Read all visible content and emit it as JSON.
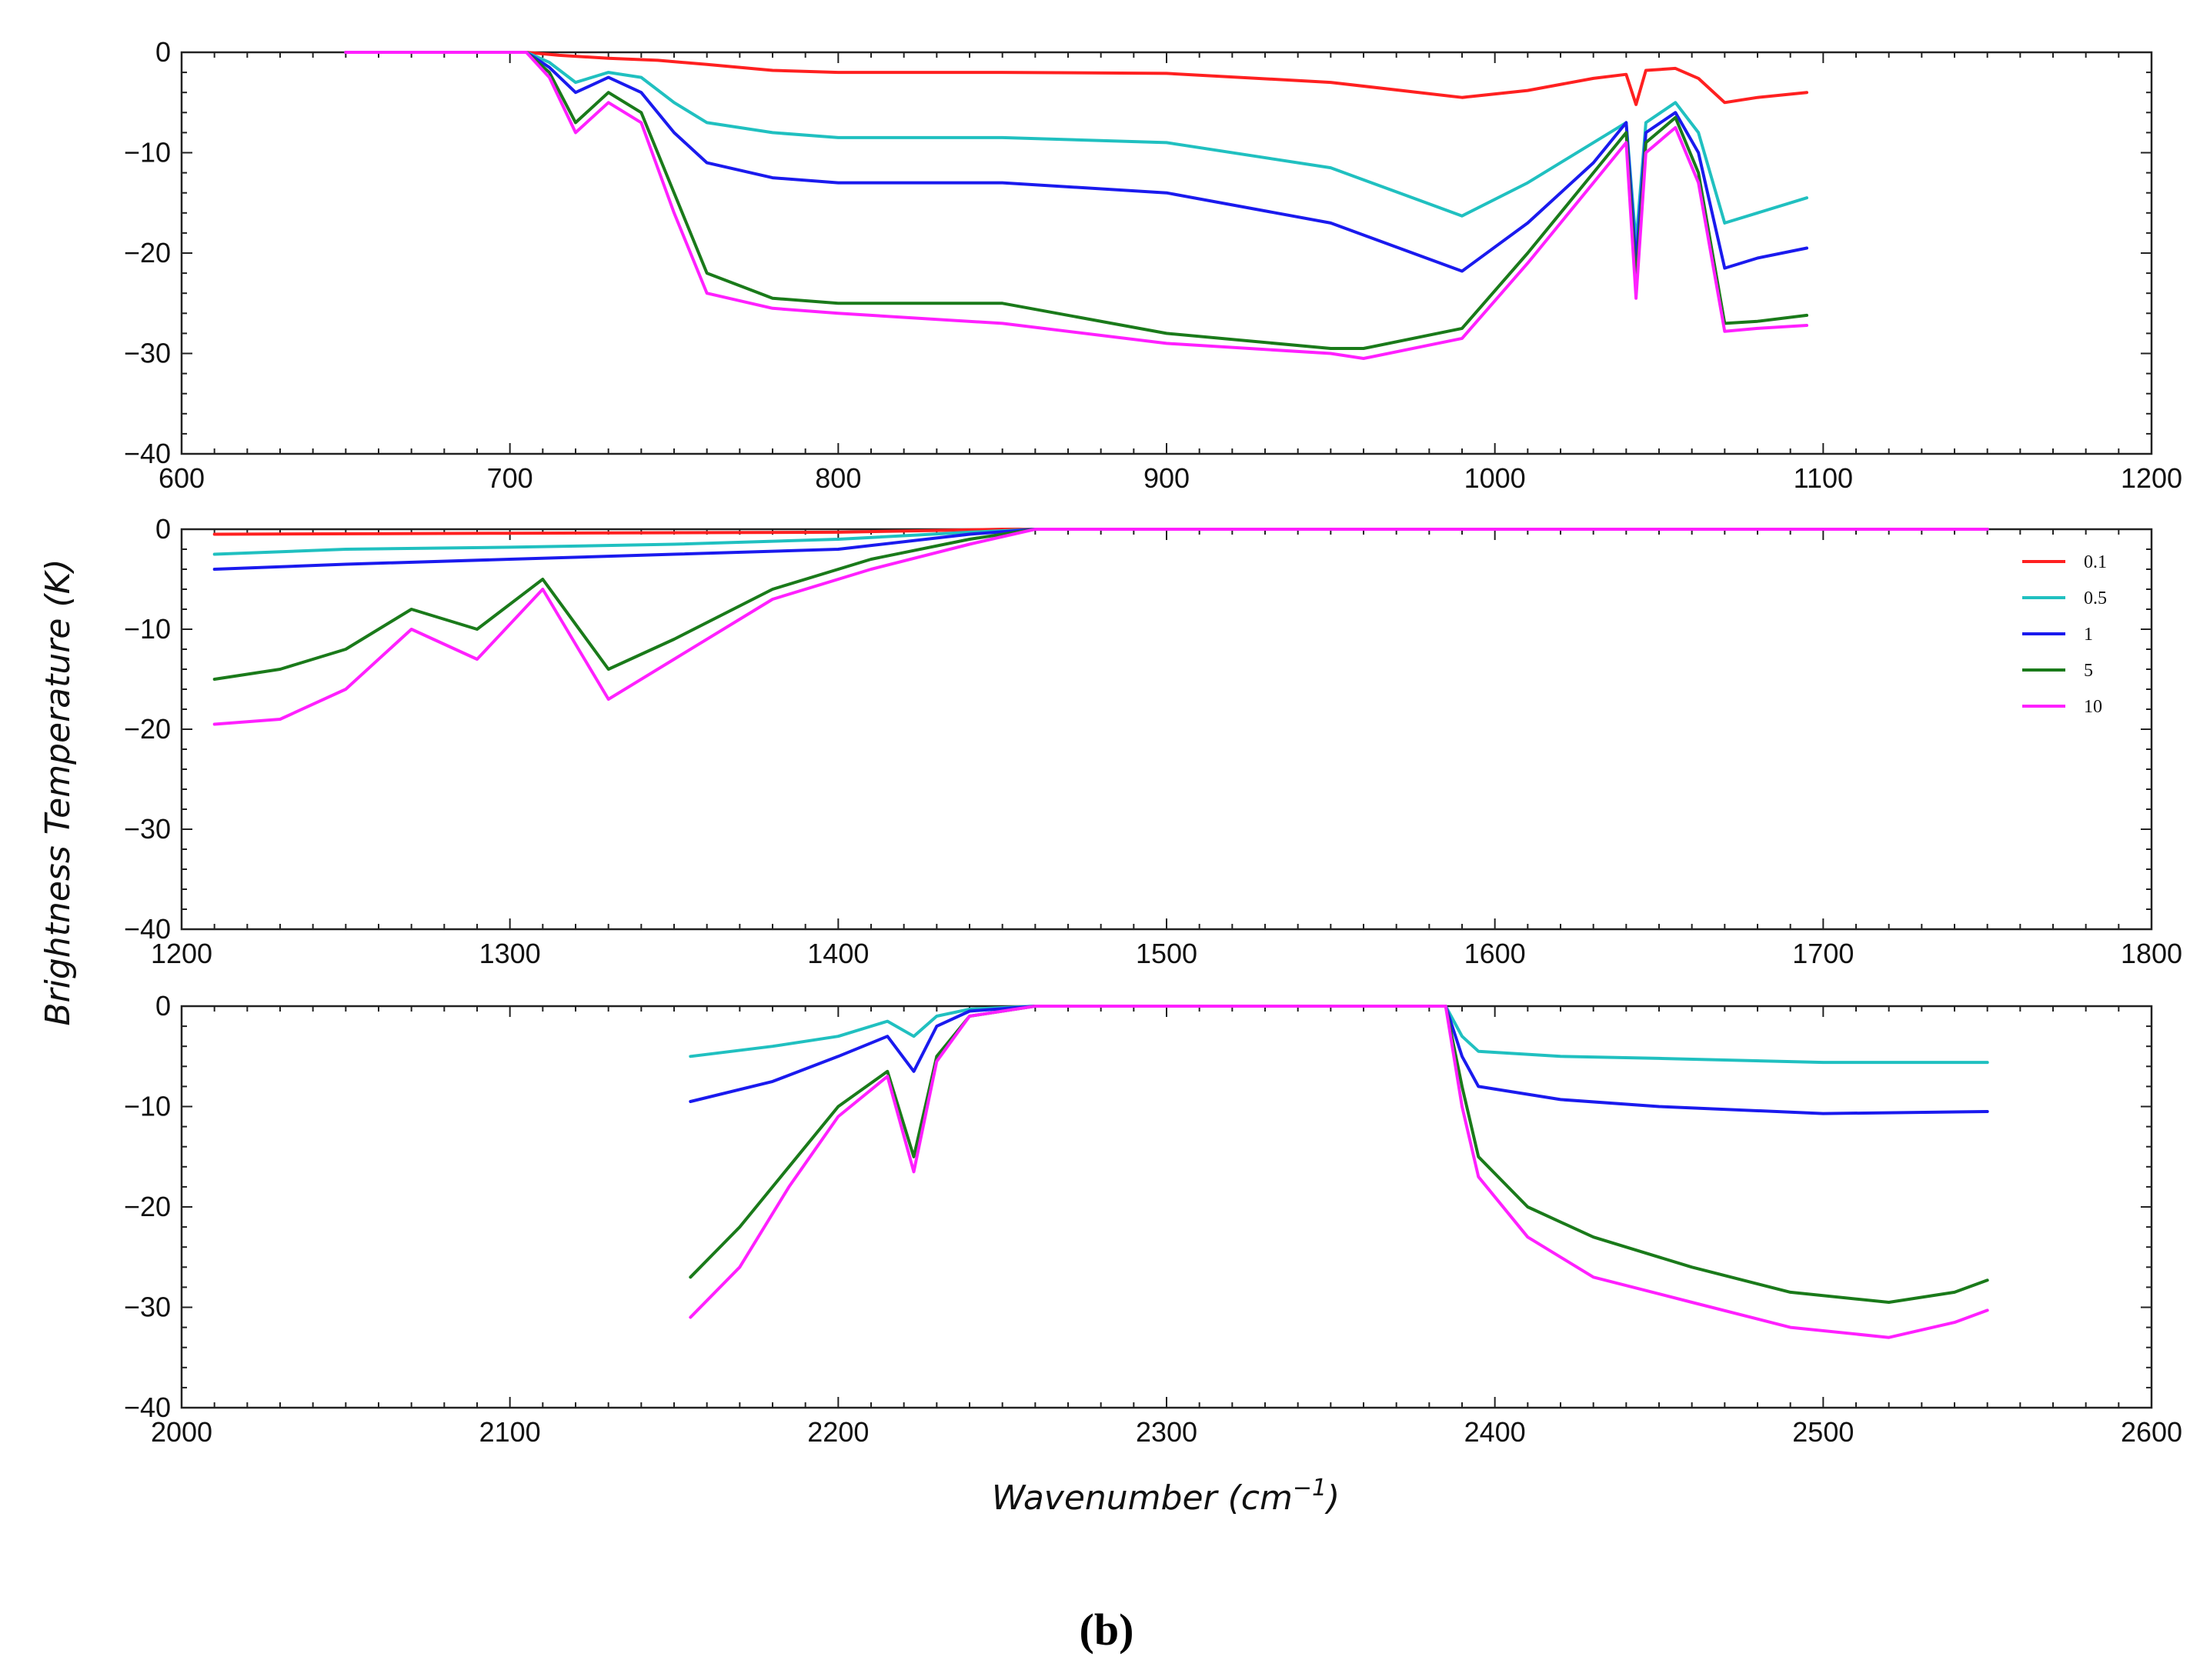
{
  "figure": {
    "caption": "(b)",
    "ylabel": "Brightness Temperature (K)",
    "xlabel_main": "Wavenumber (cm",
    "xlabel_sup": "−1",
    "xlabel_close": ")"
  },
  "legend": [
    {
      "name": "0.1",
      "color": "#ff2020"
    },
    {
      "name": "0.5",
      "color": "#20c0c0"
    },
    {
      "name": "1",
      "color": "#1a1aee"
    },
    {
      "name": "5",
      "color": "#1a7a1a"
    },
    {
      "name": "10",
      "color": "#ff20ff"
    }
  ],
  "chart_data": [
    {
      "type": "line",
      "title": "",
      "xlabel": "",
      "ylabel": "Brightness Temperature (K)",
      "xlim": [
        600,
        1200
      ],
      "ylim": [
        -40,
        0
      ],
      "xticks": [
        "600",
        "700",
        "800",
        "900",
        "1000",
        "1100",
        "1200"
      ],
      "yticks": [
        "0",
        "−10",
        "−20",
        "−30",
        "−40"
      ],
      "series": [
        {
          "name": "0.1",
          "x": [
            650,
            705,
            715,
            730,
            745,
            760,
            780,
            800,
            850,
            900,
            950,
            990,
            1010,
            1030,
            1040,
            1043,
            1046,
            1055,
            1062,
            1070,
            1080,
            1095
          ],
          "y": [
            0,
            0,
            -0.3,
            -0.6,
            -0.8,
            -1.2,
            -1.8,
            -2,
            -2,
            -2.1,
            -3,
            -4.5,
            -3.8,
            -2.6,
            -2.2,
            -5.2,
            -1.8,
            -1.6,
            -2.6,
            -5,
            -4.5,
            -4
          ]
        },
        {
          "name": "0.5",
          "x": [
            650,
            705,
            712,
            720,
            730,
            740,
            750,
            760,
            780,
            800,
            850,
            900,
            950,
            990,
            1010,
            1030,
            1040,
            1043,
            1046,
            1055,
            1062,
            1070,
            1080,
            1095
          ],
          "y": [
            0,
            0,
            -1,
            -3,
            -2,
            -2.5,
            -5,
            -7,
            -8,
            -8.5,
            -8.5,
            -9,
            -11.5,
            -16.3,
            -13,
            -9,
            -7,
            -19,
            -7,
            -5,
            -8,
            -17,
            -16,
            -14.5
          ]
        },
        {
          "name": "1",
          "x": [
            650,
            705,
            712,
            720,
            730,
            740,
            750,
            760,
            780,
            800,
            850,
            900,
            950,
            990,
            1010,
            1030,
            1040,
            1043,
            1046,
            1055,
            1062,
            1070,
            1080,
            1095
          ],
          "y": [
            0,
            0,
            -1.5,
            -4,
            -2.5,
            -4,
            -8,
            -11,
            -12.5,
            -13,
            -13,
            -14,
            -17,
            -21.8,
            -17,
            -11,
            -7,
            -21,
            -8,
            -6,
            -10,
            -21.5,
            -20.5,
            -19.5
          ]
        },
        {
          "name": "5",
          "x": [
            650,
            705,
            712,
            720,
            730,
            740,
            750,
            760,
            780,
            800,
            850,
            900,
            950,
            960,
            990,
            1010,
            1030,
            1040,
            1043,
            1046,
            1055,
            1062,
            1070,
            1080,
            1095
          ],
          "y": [
            0,
            0,
            -2,
            -7,
            -4,
            -6,
            -14,
            -22,
            -24.5,
            -25,
            -25,
            -28,
            -29.5,
            -29.5,
            -27.5,
            -20,
            -12,
            -8,
            -23,
            -9,
            -6.5,
            -12,
            -27,
            -26.8,
            -26.2
          ]
        },
        {
          "name": "10",
          "x": [
            650,
            705,
            712,
            720,
            730,
            740,
            750,
            760,
            780,
            800,
            850,
            900,
            950,
            960,
            990,
            1010,
            1030,
            1040,
            1043,
            1046,
            1055,
            1062,
            1070,
            1080,
            1095
          ],
          "y": [
            0,
            0,
            -2.5,
            -8,
            -5,
            -7,
            -16,
            -24,
            -25.5,
            -26,
            -27,
            -29,
            -30,
            -30.5,
            -28.5,
            -21,
            -13,
            -9,
            -24.5,
            -10,
            -7.5,
            -13,
            -27.8,
            -27.5,
            -27.2
          ]
        }
      ]
    },
    {
      "type": "line",
      "title": "",
      "xlabel": "",
      "ylabel": "",
      "xlim": [
        1200,
        1800
      ],
      "ylim": [
        -40,
        0
      ],
      "xticks": [
        "1200",
        "1300",
        "1400",
        "1500",
        "1600",
        "1700",
        "1800"
      ],
      "yticks": [
        "0",
        "−10",
        "−20",
        "−30",
        "−40"
      ],
      "series": [
        {
          "name": "0.1",
          "x": [
            1210,
            1300,
            1400,
            1450,
            1750
          ],
          "y": [
            -0.5,
            -0.4,
            -0.3,
            0,
            0
          ]
        },
        {
          "name": "0.5",
          "x": [
            1210,
            1250,
            1300,
            1350,
            1400,
            1440,
            1460,
            1750
          ],
          "y": [
            -2.5,
            -2,
            -1.8,
            -1.5,
            -1,
            -0.3,
            0,
            0
          ]
        },
        {
          "name": "1",
          "x": [
            1210,
            1250,
            1300,
            1350,
            1400,
            1440,
            1460,
            1750
          ],
          "y": [
            -4,
            -3.5,
            -3,
            -2.5,
            -2,
            -0.5,
            0,
            0
          ]
        },
        {
          "name": "5",
          "x": [
            1210,
            1230,
            1250,
            1270,
            1290,
            1310,
            1330,
            1350,
            1380,
            1410,
            1440,
            1460,
            1750
          ],
          "y": [
            -15,
            -14,
            -12,
            -8,
            -10,
            -5,
            -14,
            -11,
            -6,
            -3,
            -1,
            0,
            0
          ]
        },
        {
          "name": "10",
          "x": [
            1210,
            1230,
            1250,
            1270,
            1290,
            1310,
            1330,
            1350,
            1380,
            1410,
            1440,
            1460,
            1750
          ],
          "y": [
            -19.5,
            -19,
            -16,
            -10,
            -13,
            -6,
            -17,
            -13,
            -7,
            -4,
            -1.5,
            0,
            0
          ]
        }
      ]
    },
    {
      "type": "line",
      "title": "",
      "xlabel": "Wavenumber (cm−1)",
      "ylabel": "",
      "xlim": [
        2000,
        2600
      ],
      "ylim": [
        -40,
        0
      ],
      "xticks": [
        "2000",
        "2100",
        "2200",
        "2300",
        "2400",
        "2500",
        "2600"
      ],
      "yticks": [
        "0",
        "−10",
        "−20",
        "−30",
        "−40"
      ],
      "series": [
        {
          "name": "0.5",
          "x": [
            2155,
            2180,
            2200,
            2215,
            2223,
            2230,
            2240,
            2260,
            2385,
            2390,
            2395,
            2420,
            2450,
            2500,
            2550
          ],
          "y": [
            -5,
            -4,
            -3,
            -1.5,
            -3,
            -1,
            -0.3,
            0,
            0,
            -3,
            -4.5,
            -5,
            -5.2,
            -5.6,
            -5.6
          ]
        },
        {
          "name": "1",
          "x": [
            2155,
            2180,
            2200,
            2215,
            2223,
            2230,
            2240,
            2260,
            2385,
            2390,
            2395,
            2420,
            2450,
            2500,
            2550
          ],
          "y": [
            -9.5,
            -7.5,
            -5,
            -3,
            -6.5,
            -2,
            -0.5,
            0,
            0,
            -5,
            -8,
            -9.3,
            -10,
            -10.7,
            -10.5
          ]
        },
        {
          "name": "5",
          "x": [
            2155,
            2170,
            2185,
            2200,
            2215,
            2223,
            2230,
            2240,
            2260,
            2385,
            2390,
            2395,
            2410,
            2430,
            2460,
            2490,
            2520,
            2540,
            2550
          ],
          "y": [
            -27,
            -22,
            -16,
            -10,
            -6.5,
            -15,
            -5,
            -1,
            0,
            0,
            -8,
            -15,
            -20,
            -23,
            -26,
            -28.5,
            -29.5,
            -28.5,
            -27.3
          ]
        },
        {
          "name": "10",
          "x": [
            2155,
            2170,
            2185,
            2200,
            2215,
            2223,
            2230,
            2240,
            2260,
            2385,
            2390,
            2395,
            2410,
            2430,
            2460,
            2490,
            2520,
            2540,
            2550
          ],
          "y": [
            -31,
            -26,
            -18,
            -11,
            -7,
            -16.5,
            -5.5,
            -1,
            0,
            0,
            -10,
            -17,
            -23,
            -27,
            -29.5,
            -32,
            -33,
            -31.5,
            -30.3
          ]
        }
      ]
    }
  ]
}
